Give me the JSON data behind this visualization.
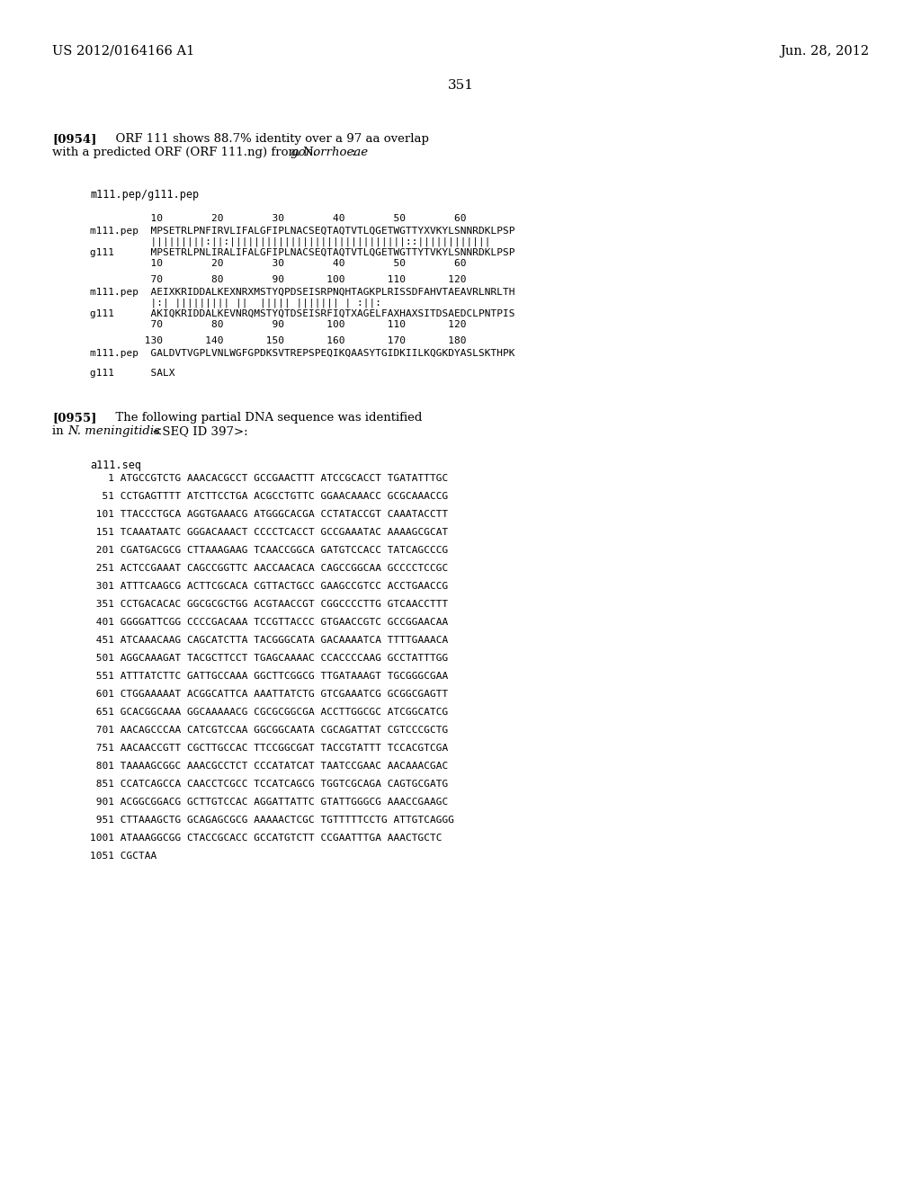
{
  "bg_color": "#ffffff",
  "header_left": "US 2012/0164166 A1",
  "header_right": "Jun. 28, 2012",
  "page_number": "351",
  "alignment_header": "m111.pep/g111.pep",
  "b1_nums1": "          10        20        30        40        50        60",
  "b1_seq1": "m111.pep  MPSETRLPNFIRVLIFALGFIPLNACSEQTAQTVTLQGETWGTTYXVKYLSNNRDKLPSP",
  "b1_match": "          |||||||||:||:|||||||||||||||||||||||||||||::||||||||||||",
  "b1_seq2": "g111      MPSETRLPNLIRALIFALGFIPLNACSEQTAQTVTLQGETWGTTYTVKYLSNNRDKLPSP",
  "b1_nums2": "          10        20        30        40        50        60",
  "b2_nums1": "          70        80        90       100       110       120",
  "b2_seq1": "m111.pep  AEIXKRIDDALKEXNRXMSTYQPDSEISRPNQHTAGKPLRISSDFAHVTAEAVRLNRLTH",
  "b2_match": "          |:| ||||||||| ||  ||||| ||||||| | :||:",
  "b2_seq2": "g111      AKIQKRIDDALKEVNRQMSTYQTDSEISRFIQTXAGELFAXHAXSITDSAEDCLPNTPIS",
  "b2_nums2": "          70        80        90       100       110       120",
  "b3_nums1": "         130       140       150       160       170       180",
  "b3_seq1": "m111.pep  GALDVTVGPLVNLWGFGPDKSVTREPSPEQIKQAASYTGIDKIILKQGKDYASLSKTHPK",
  "b3_seq2": "g111      SALX",
  "dna_header": "a111.seq",
  "dna_lines": [
    "   1 ATGCCGTCTG AAACACGCCT GCCGAACTTT ATCCGCACCT TGATATTTGC",
    "  51 CCTGAGTTTT ATCTTCCTGA ACGCCTGTTC GGAACAAACC GCGCAAACCG",
    " 101 TTACCCTGCA AGGTGAAACG ATGGGCACGA CCTATACCGT CAAATACCTT",
    " 151 TCAAATAATC GGGACAAACT CCCCTCACCT GCCGAAATAC AAAAGCGCAT",
    " 201 CGATGACGCG CTTAAAGAAG TCAACCGGCA GATGTCCACC TATCAGCCCG",
    " 251 ACTCCGAAAT CAGCCGGTTC AACCAACACA CAGCCGGCAA GCCCCTCCGC",
    " 301 ATTTCAAGCG ACTTCGCACA CGTTACTGCC GAAGCCGTCC ACCTGAACCG",
    " 351 CCTGACACAC GGCGCGCTGG ACGTAACCGT CGGCCCCTTG GTCAACCTTT",
    " 401 GGGGATTCGG CCCCGACAAA TCCGTTACCC GTGAACCGTC GCCGGAACAA",
    " 451 ATCAAACAAG CAGCATCTTA TACGGGCATA GACAAAATCA TTTTGAAACA",
    " 501 AGGCAAAGAT TACGCTTCCT TGAGCAAAAC CCACCCCAAG GCCTATTTGG",
    " 551 ATTTATCTTC GATTGCCAAA GGCTTCGGCG TTGATAAAGT TGCGGGCGAA",
    " 601 CTGGAAAAAT ACGGCATTCA AAATTATCTG GTCGAAATCG GCGGCGAGTT",
    " 651 GCACGGCAAA GGCAAAAACG CGCGCGGCGA ACCTTGGCGC ATCGGCATCG",
    " 701 AACAGCCCAA CATCGTCCAA GGCGGCAATA CGCAGATTAT CGTCCCGCTG",
    " 751 AACAACCGTT CGCTTGCCAC TTCCGGCGAT TACCGTATTT TCCACGTCGA",
    " 801 TAAAAGCGGC AAACGCCTCT CCCATATCAT TAATCCGAAC AACAAACGAC",
    " 851 CCATCAGCCA CAACCTCGCC TCCATCAGCG TGGTCGCAGA CAGTGCGATG",
    " 901 ACGGCGGACG GCTTGTCCAC AGGATTATTC GTATTGGGCG AAACCGAAGC",
    " 951 CTTAAAGCTG GCAGAGCGCG AAAAACTCGC TGTTTTTCCTG ATTGTCAGGG",
    "1001 ATAAAGGCGG CTACCGCACC GCCATGTCTT CCGAATTTGA AAACTGCTC",
    "1051 CGCTAA"
  ]
}
